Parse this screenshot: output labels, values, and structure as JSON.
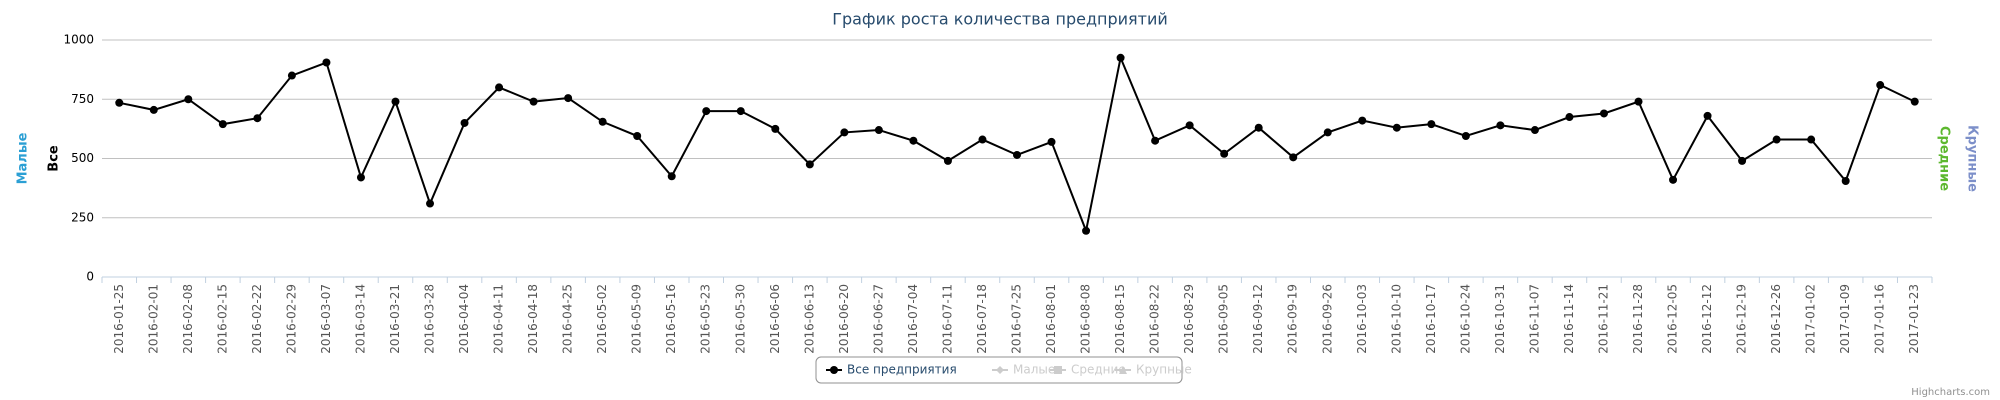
{
  "chart_data": {
    "type": "line",
    "title": "График роста количества предприятий",
    "categories": [
      "2016-01-25",
      "2016-02-01",
      "2016-02-08",
      "2016-02-15",
      "2016-02-22",
      "2016-02-29",
      "2016-03-07",
      "2016-03-14",
      "2016-03-21",
      "2016-03-28",
      "2016-04-04",
      "2016-04-11",
      "2016-04-18",
      "2016-04-25",
      "2016-05-02",
      "2016-05-09",
      "2016-05-16",
      "2016-05-23",
      "2016-05-30",
      "2016-06-06",
      "2016-06-13",
      "2016-06-20",
      "2016-06-27",
      "2016-07-04",
      "2016-07-11",
      "2016-07-18",
      "2016-07-25",
      "2016-08-01",
      "2016-08-08",
      "2016-08-15",
      "2016-08-22",
      "2016-08-29",
      "2016-09-05",
      "2016-09-12",
      "2016-09-19",
      "2016-09-26",
      "2016-10-03",
      "2016-10-10",
      "2016-10-17",
      "2016-10-24",
      "2016-10-31",
      "2016-11-07",
      "2016-11-14",
      "2016-11-21",
      "2016-11-28",
      "2016-12-05",
      "2016-12-12",
      "2016-12-19",
      "2016-12-26",
      "2017-01-02",
      "2017-01-09",
      "2017-01-16",
      "2017-01-23"
    ],
    "series": [
      {
        "name": "Все предприятия",
        "color": "#000000",
        "visible": true,
        "marker": "circle",
        "values": [
          735,
          705,
          750,
          645,
          670,
          850,
          905,
          420,
          740,
          310,
          650,
          800,
          740,
          755,
          655,
          595,
          425,
          700,
          700,
          625,
          475,
          610,
          620,
          575,
          490,
          580,
          515,
          570,
          195,
          925,
          575,
          640,
          520,
          630,
          505,
          610,
          660,
          630,
          645,
          595,
          640,
          620,
          675,
          690,
          740,
          410,
          680,
          490,
          580,
          580,
          405,
          810,
          740
        ]
      },
      {
        "name": "Малые",
        "color": "#cccccc",
        "visible": false,
        "marker": "diamond"
      },
      {
        "name": "Средние",
        "color": "#cccccc",
        "visible": false,
        "marker": "square"
      },
      {
        "name": "Крупные",
        "color": "#cccccc",
        "visible": false,
        "marker": "triangle"
      }
    ],
    "ylim": [
      0,
      1000
    ],
    "yticks": [
      0,
      250,
      500,
      750,
      1000
    ],
    "grid": true,
    "axis_titles": [
      {
        "text": "Малые",
        "color": "#2b9fd4",
        "side": "left"
      },
      {
        "text": "Все",
        "color": "#000000",
        "side": "left"
      },
      {
        "text": "Средние",
        "color": "#5cb82e",
        "side": "right"
      },
      {
        "text": "Крупные",
        "color": "#7c8fc9",
        "side": "right"
      }
    ],
    "legend": "bottom",
    "credits": "Highcharts.com"
  }
}
